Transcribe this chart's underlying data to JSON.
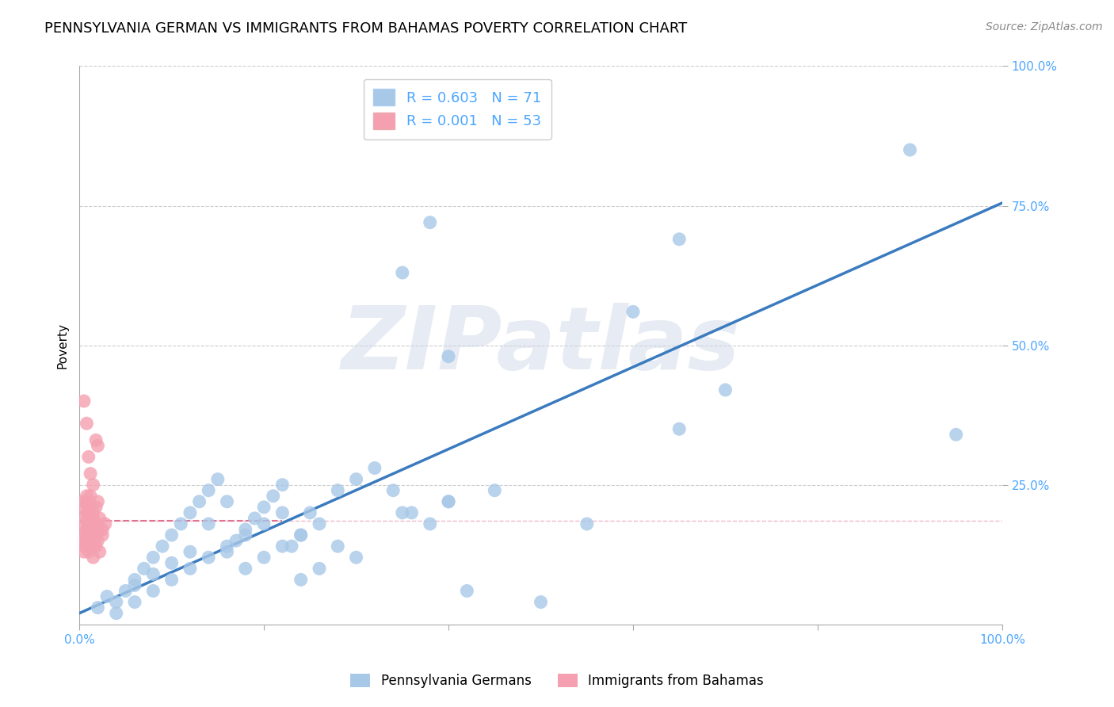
{
  "title": "PENNSYLVANIA GERMAN VS IMMIGRANTS FROM BAHAMAS POVERTY CORRELATION CHART",
  "source": "Source: ZipAtlas.com",
  "ylabel": "Poverty",
  "xlim": [
    0.0,
    1.0
  ],
  "ylim": [
    0.0,
    1.0
  ],
  "ytick_labels": [
    "25.0%",
    "50.0%",
    "75.0%",
    "100.0%"
  ],
  "ytick_positions": [
    0.25,
    0.5,
    0.75,
    1.0
  ],
  "blue_R": 0.603,
  "blue_N": 71,
  "pink_R": 0.001,
  "pink_N": 53,
  "blue_color": "#a8c8e8",
  "pink_color": "#f4a0b0",
  "blue_line_color": "#3a7bbf",
  "pink_line_color": "#e07090",
  "tick_color": "#4da6ff",
  "watermark_text": "ZIPatlas",
  "legend_label_blue": "Pennsylvania Germans",
  "legend_label_pink": "Immigrants from Bahamas",
  "blue_scatter_x": [
    0.02,
    0.03,
    0.04,
    0.05,
    0.06,
    0.07,
    0.08,
    0.09,
    0.1,
    0.11,
    0.12,
    0.13,
    0.14,
    0.15,
    0.16,
    0.17,
    0.18,
    0.19,
    0.2,
    0.21,
    0.22,
    0.23,
    0.24,
    0.25,
    0.06,
    0.08,
    0.1,
    0.12,
    0.14,
    0.16,
    0.18,
    0.2,
    0.22,
    0.24,
    0.26,
    0.28,
    0.3,
    0.32,
    0.34,
    0.36,
    0.38,
    0.4,
    0.42,
    0.04,
    0.06,
    0.08,
    0.1,
    0.12,
    0.14,
    0.16,
    0.18,
    0.2,
    0.22,
    0.24,
    0.26,
    0.28,
    0.3,
    0.35,
    0.4,
    0.45,
    0.5,
    0.55,
    0.6,
    0.65,
    0.7,
    0.65,
    0.9,
    0.95,
    0.35,
    0.38,
    0.4
  ],
  "blue_scatter_y": [
    0.03,
    0.05,
    0.04,
    0.06,
    0.08,
    0.1,
    0.12,
    0.14,
    0.16,
    0.18,
    0.2,
    0.22,
    0.24,
    0.26,
    0.13,
    0.15,
    0.17,
    0.19,
    0.21,
    0.23,
    0.25,
    0.14,
    0.16,
    0.2,
    0.07,
    0.09,
    0.11,
    0.13,
    0.18,
    0.22,
    0.1,
    0.12,
    0.14,
    0.16,
    0.18,
    0.24,
    0.26,
    0.28,
    0.24,
    0.2,
    0.18,
    0.22,
    0.06,
    0.02,
    0.04,
    0.06,
    0.08,
    0.1,
    0.12,
    0.14,
    0.16,
    0.18,
    0.2,
    0.08,
    0.1,
    0.14,
    0.12,
    0.2,
    0.22,
    0.24,
    0.04,
    0.18,
    0.56,
    0.69,
    0.42,
    0.35,
    0.85,
    0.34,
    0.63,
    0.72,
    0.48
  ],
  "pink_scatter_x": [
    0.005,
    0.008,
    0.01,
    0.012,
    0.015,
    0.018,
    0.02,
    0.022,
    0.025,
    0.028,
    0.005,
    0.008,
    0.01,
    0.012,
    0.015,
    0.018,
    0.02,
    0.022,
    0.025,
    0.005,
    0.008,
    0.01,
    0.012,
    0.015,
    0.018,
    0.02,
    0.005,
    0.008,
    0.01,
    0.012,
    0.015,
    0.018,
    0.005,
    0.008,
    0.01,
    0.012,
    0.015,
    0.005,
    0.008,
    0.01,
    0.012,
    0.005,
    0.008,
    0.01,
    0.005,
    0.008,
    0.005,
    0.008,
    0.01,
    0.012,
    0.015,
    0.018,
    0.02
  ],
  "pink_scatter_y": [
    0.18,
    0.17,
    0.19,
    0.16,
    0.2,
    0.18,
    0.17,
    0.19,
    0.16,
    0.18,
    0.14,
    0.15,
    0.13,
    0.16,
    0.12,
    0.14,
    0.15,
    0.13,
    0.17,
    0.21,
    0.22,
    0.2,
    0.23,
    0.19,
    0.21,
    0.22,
    0.16,
    0.17,
    0.15,
    0.18,
    0.14,
    0.16,
    0.19,
    0.2,
    0.18,
    0.21,
    0.17,
    0.15,
    0.16,
    0.14,
    0.17,
    0.22,
    0.23,
    0.21,
    0.13,
    0.14,
    0.4,
    0.36,
    0.3,
    0.27,
    0.25,
    0.33,
    0.32
  ],
  "pink_outlier_x": [
    0.005
  ],
  "pink_outlier_y": [
    0.4
  ],
  "blue_trend_x": [
    0.0,
    1.0
  ],
  "blue_trend_y": [
    0.02,
    0.755
  ],
  "pink_hline_y": 0.185,
  "pink_hline_xmax": 0.22,
  "grid_color": "#cccccc",
  "background_color": "#ffffff",
  "title_fontsize": 13,
  "axis_fontsize": 11,
  "tick_fontsize": 11,
  "source_fontsize": 10
}
